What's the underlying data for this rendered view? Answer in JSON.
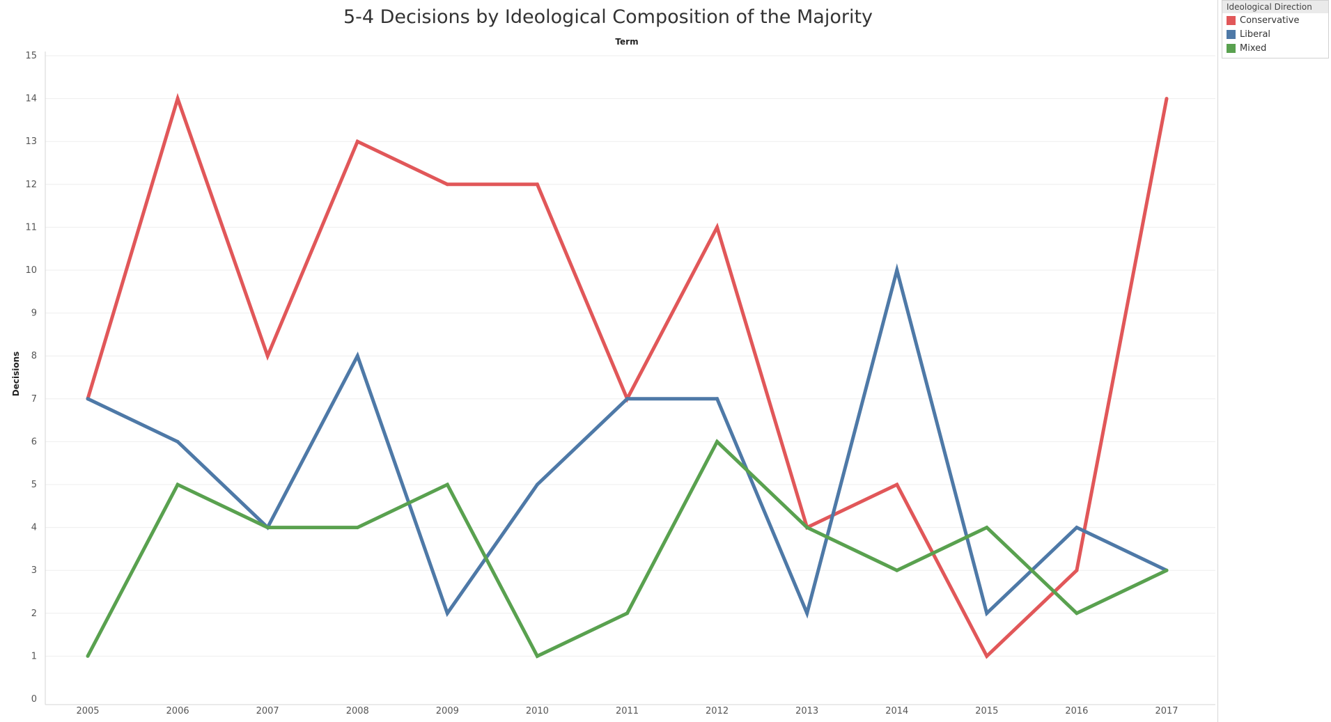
{
  "chart_data": {
    "type": "line",
    "title": "5-4 Decisions by Ideological Composition of the Majority",
    "top_header": "Term",
    "xlabel": "",
    "ylabel": "Decisions",
    "x": [
      2005,
      2006,
      2007,
      2008,
      2009,
      2010,
      2011,
      2012,
      2013,
      2014,
      2015,
      2016,
      2017
    ],
    "ylim": [
      0,
      15
    ],
    "yticks": [
      0,
      1,
      2,
      3,
      4,
      5,
      6,
      7,
      8,
      9,
      10,
      11,
      12,
      13,
      14,
      15
    ],
    "grid": true,
    "legend_position": "top-right",
    "legend_title": "Ideological Direction",
    "series": [
      {
        "name": "Conservative",
        "color": "#e15759",
        "values": [
          7,
          14,
          8,
          13,
          12,
          12,
          7,
          11,
          4,
          5,
          1,
          3,
          14
        ]
      },
      {
        "name": "Liberal",
        "color": "#4e79a7",
        "values": [
          7,
          6,
          4,
          8,
          2,
          5,
          7,
          7,
          2,
          10,
          2,
          4,
          3
        ]
      },
      {
        "name": "Mixed",
        "color": "#59a14f",
        "values": [
          1,
          5,
          4,
          4,
          5,
          1,
          2,
          6,
          4,
          3,
          4,
          2,
          3
        ]
      }
    ]
  }
}
